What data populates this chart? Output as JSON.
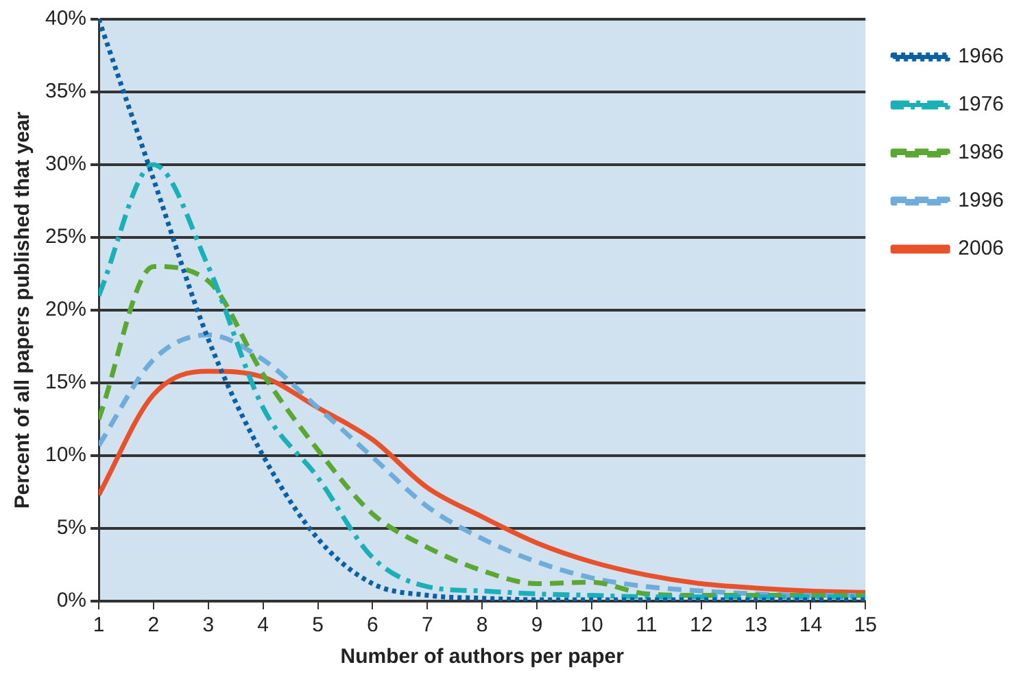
{
  "chart_data": {
    "type": "line",
    "xlabel": "Number of authors per paper",
    "ylabel": "Percent of all papers published that year",
    "x": [
      1,
      2,
      3,
      4,
      5,
      6,
      7,
      8,
      9,
      10,
      11,
      12,
      13,
      14,
      15
    ],
    "series": [
      {
        "name": "1966",
        "color": "#0b5fa5",
        "line_style": "dotted",
        "values": [
          40,
          29,
          18,
          10,
          4.3,
          1.2,
          0.4,
          0.2,
          0.1,
          0.1,
          0.1,
          0.1,
          0.1,
          0.1,
          0.1
        ]
      },
      {
        "name": "1976",
        "color": "#1ab0b8",
        "line_style": "dashdot",
        "values": [
          21,
          30,
          23,
          13.3,
          8.5,
          3,
          1,
          0.7,
          0.5,
          0.4,
          0.3,
          0.3,
          0.3,
          0.3,
          0.3
        ]
      },
      {
        "name": "1986",
        "color": "#5aa832",
        "line_style": "dashed",
        "values": [
          12.5,
          23,
          22,
          15.6,
          10.4,
          6,
          3.7,
          2.1,
          1.2,
          1.3,
          0.5,
          0.4,
          0.4,
          0.4,
          0.4
        ]
      },
      {
        "name": "1996",
        "color": "#6eaddb",
        "line_style": "dashed",
        "values": [
          10.7,
          16.6,
          18.3,
          16.6,
          13.3,
          9.9,
          6.5,
          4.3,
          2.7,
          1.6,
          1,
          0.7,
          0.5,
          0.4,
          0.4
        ]
      },
      {
        "name": "2006",
        "color": "#e8512a",
        "line_style": "solid",
        "values": [
          7.3,
          14.2,
          15.8,
          15.4,
          13.3,
          11.1,
          7.8,
          5.8,
          4,
          2.7,
          1.8,
          1.2,
          0.9,
          0.7,
          0.6
        ]
      }
    ],
    "xlim": [
      1,
      15
    ],
    "xticks": [
      1,
      2,
      3,
      4,
      5,
      6,
      7,
      8,
      9,
      10,
      11,
      12,
      13,
      14,
      15
    ],
    "ylim": [
      0,
      40
    ],
    "yticks": [
      {
        "value": 0,
        "label": "0%"
      },
      {
        "value": 5,
        "label": "5%"
      },
      {
        "value": 10,
        "label": "10%"
      },
      {
        "value": 15,
        "label": "15%"
      },
      {
        "value": 20,
        "label": "20%"
      },
      {
        "value": 25,
        "label": "25%"
      },
      {
        "value": 30,
        "label": "30%"
      },
      {
        "value": 35,
        "label": "35%"
      },
      {
        "value": 40,
        "label": "40%"
      }
    ],
    "grid": "y",
    "legend": "right",
    "marker": "none"
  }
}
